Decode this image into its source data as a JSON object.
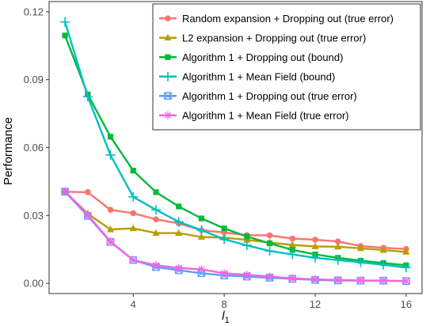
{
  "chart_data": {
    "type": "line",
    "title": "",
    "xlabel": "l",
    "xlabel_sub": "1",
    "ylabel": "Performance",
    "xlim": [
      0.3,
      16.7
    ],
    "ylim": [
      -0.0045,
      0.1245
    ],
    "xticks": [
      4,
      8,
      12,
      16
    ],
    "yticks": [
      0.0,
      0.03,
      0.06,
      0.09,
      0.12
    ],
    "ytick_labels": [
      "0.00",
      "0.03",
      "0.06",
      "0.09",
      "0.12"
    ],
    "grid": false,
    "legend_position": "top-right",
    "x": [
      1,
      2,
      3,
      4,
      5,
      6,
      7,
      8,
      9,
      10,
      11,
      12,
      13,
      14,
      15,
      16
    ],
    "series": [
      {
        "name": "Random expansion + Dropping out (true error)",
        "color": "#F8766D",
        "marker": "circle",
        "values": [
          0.0405,
          0.0403,
          0.0325,
          0.031,
          0.0283,
          0.0265,
          0.0235,
          0.0225,
          0.0213,
          0.0212,
          0.0198,
          0.0193,
          0.0185,
          0.0165,
          0.0157,
          0.0152
        ]
      },
      {
        "name": "L2 expansion + Dropping out (true error)",
        "color": "#B79F00",
        "marker": "triangle",
        "values": [
          0.0405,
          0.0308,
          0.0238,
          0.0243,
          0.0222,
          0.0222,
          0.0205,
          0.0202,
          0.0192,
          0.018,
          0.017,
          0.0163,
          0.0162,
          0.0155,
          0.0147,
          0.0139
        ]
      },
      {
        "name": "Algorithm 1 + Dropping out (bound)",
        "color": "#00BA38",
        "marker": "square",
        "values": [
          0.1095,
          0.0835,
          0.0648,
          0.0498,
          0.0403,
          0.034,
          0.0287,
          0.0243,
          0.0207,
          0.0177,
          0.0148,
          0.0128,
          0.0113,
          0.01,
          0.009,
          0.008
        ]
      },
      {
        "name": "Algorithm 1 + Mean Field (bound)",
        "color": "#00BFC4",
        "marker": "plus",
        "values": [
          0.1155,
          0.0825,
          0.0567,
          0.0382,
          0.0325,
          0.0272,
          0.0235,
          0.0195,
          0.0168,
          0.0143,
          0.0128,
          0.0113,
          0.0103,
          0.0093,
          0.0082,
          0.007
        ]
      },
      {
        "name": "Algorithm 1 + Dropping out (true error)",
        "color": "#619CFF",
        "marker": "boxcross",
        "values": [
          0.0405,
          0.0298,
          0.0183,
          0.0103,
          0.0072,
          0.0058,
          0.0045,
          0.0035,
          0.003,
          0.0025,
          0.002,
          0.0015,
          0.0013,
          0.0012,
          0.0012,
          0.001
        ]
      },
      {
        "name": "Algorithm 1 + Mean Field (true error)",
        "color": "#F564E3",
        "marker": "star",
        "values": [
          0.0408,
          0.0302,
          0.0185,
          0.0103,
          0.008,
          0.0068,
          0.0062,
          0.0045,
          0.0038,
          0.003,
          0.0022,
          0.0018,
          0.0015,
          0.0013,
          0.0012,
          0.001
        ]
      }
    ]
  }
}
